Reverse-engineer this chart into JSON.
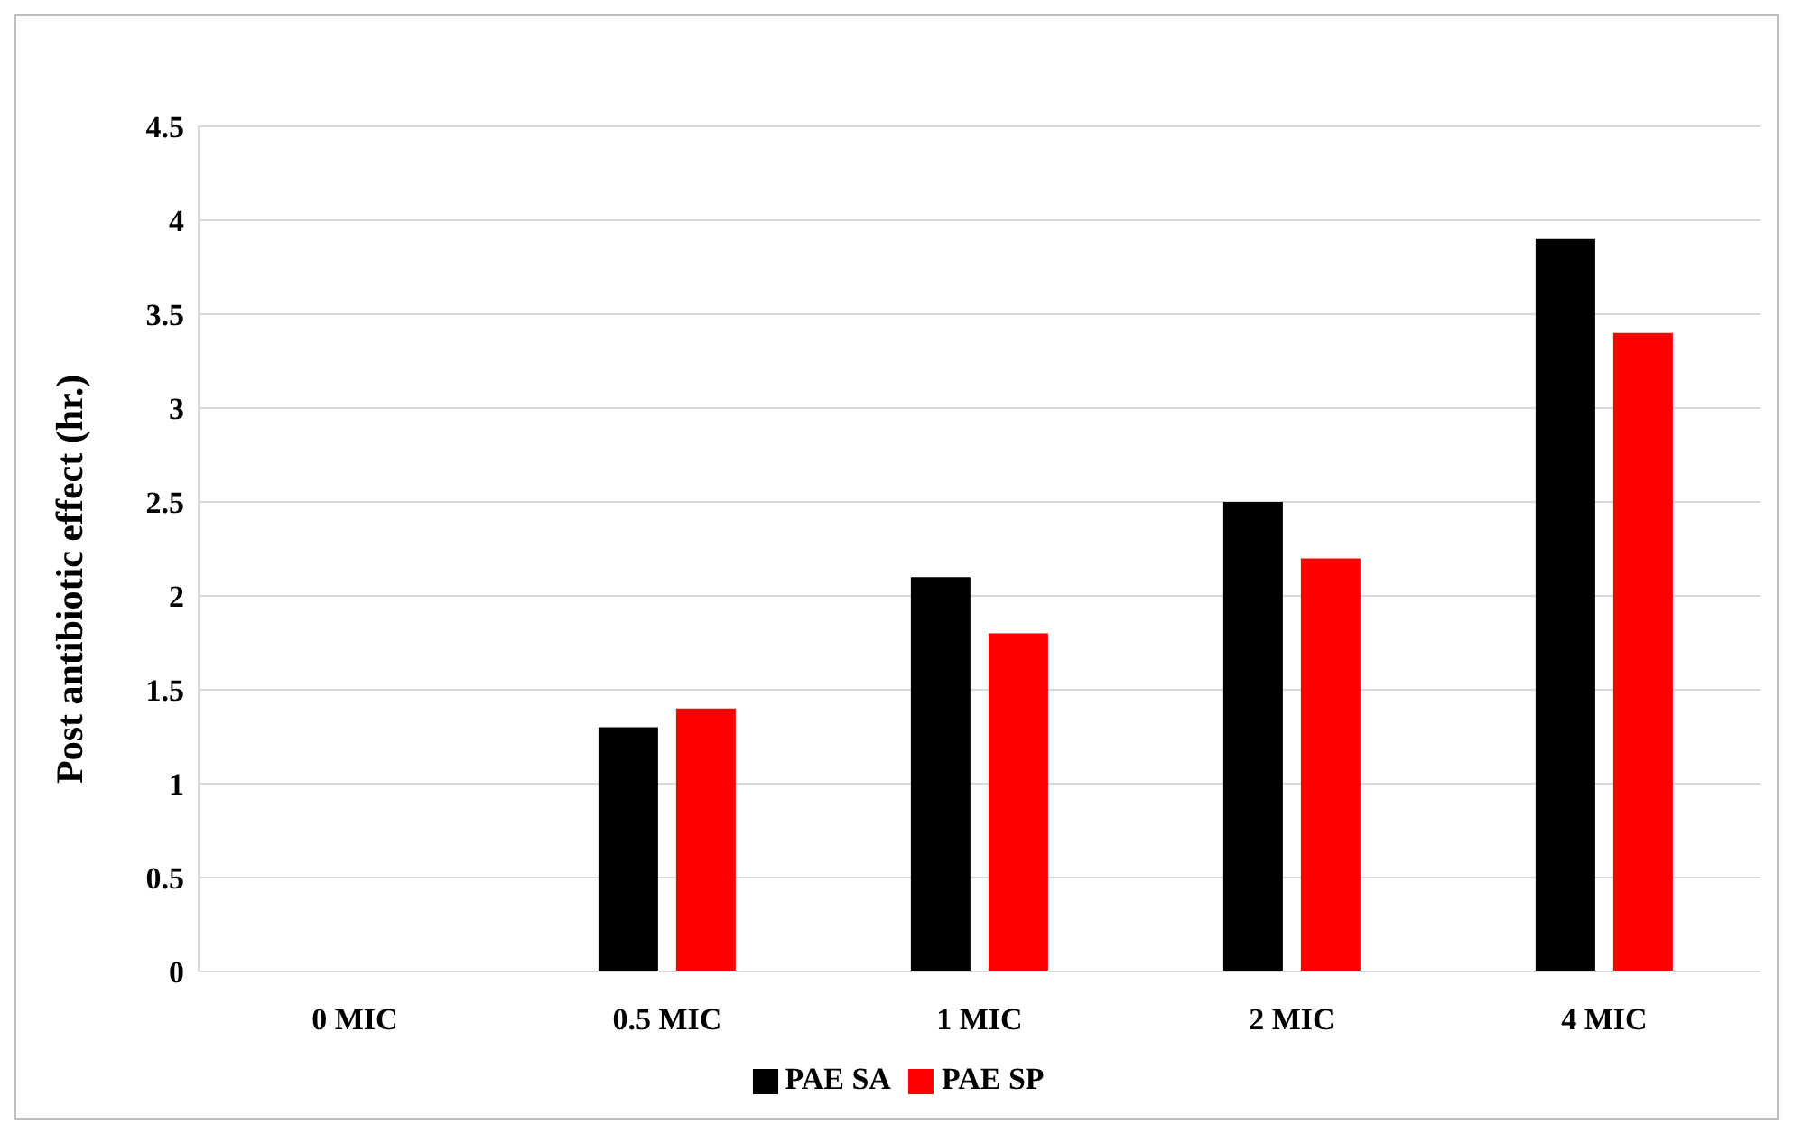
{
  "chart_data": {
    "type": "bar",
    "ylabel": "Post antibiotic  effect (hr.)",
    "categories": [
      "0 MIC",
      "0.5 MIC",
      "1 MIC",
      "2 MIC",
      "4 MIC"
    ],
    "series": [
      {
        "name": "PAE SA",
        "color": "#000000",
        "values": [
          0,
          1.3,
          2.1,
          2.5,
          3.9
        ]
      },
      {
        "name": "PAE SP",
        "color": "#ff0000",
        "values": [
          0,
          1.4,
          1.8,
          2.2,
          3.4
        ]
      }
    ],
    "ylim": [
      0,
      4.5
    ],
    "yticks": [
      0,
      0.5,
      1,
      1.5,
      2,
      2.5,
      3,
      3.5,
      4,
      4.5
    ],
    "grid": "y",
    "legend": "bottom"
  }
}
